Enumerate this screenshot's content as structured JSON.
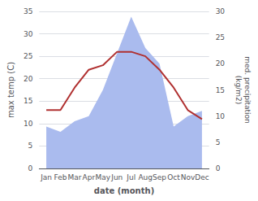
{
  "chart_data": {
    "type": "line",
    "xlabel": "date (month)",
    "ylabel": "max temp (C)",
    "y2label": "med. precipitation\n(kg/m2)",
    "categories": [
      "Jan",
      "Feb",
      "Mar",
      "Apr",
      "May",
      "Jun",
      "Jul",
      "Aug",
      "Sep",
      "Oct",
      "Nov",
      "Dec"
    ],
    "series": [
      {
        "type": "line",
        "color": "#b03030",
        "values": [
          13,
          13,
          18,
          22,
          23,
          26,
          26,
          25,
          22,
          18,
          13,
          11
        ]
      },
      {
        "type": "area",
        "color": "#aabbee",
        "axis": "y2",
        "values": [
          8,
          7,
          9,
          10,
          15,
          22,
          29,
          23,
          20,
          8,
          10,
          11
        ]
      }
    ],
    "ylim": [
      0,
      35
    ],
    "yticks": [
      0,
      5,
      10,
      15,
      20,
      25,
      30,
      35
    ],
    "y2lim": [
      0,
      30
    ],
    "y2ticks": [
      0,
      5,
      10,
      15,
      20,
      25,
      30
    ],
    "grid": true
  }
}
